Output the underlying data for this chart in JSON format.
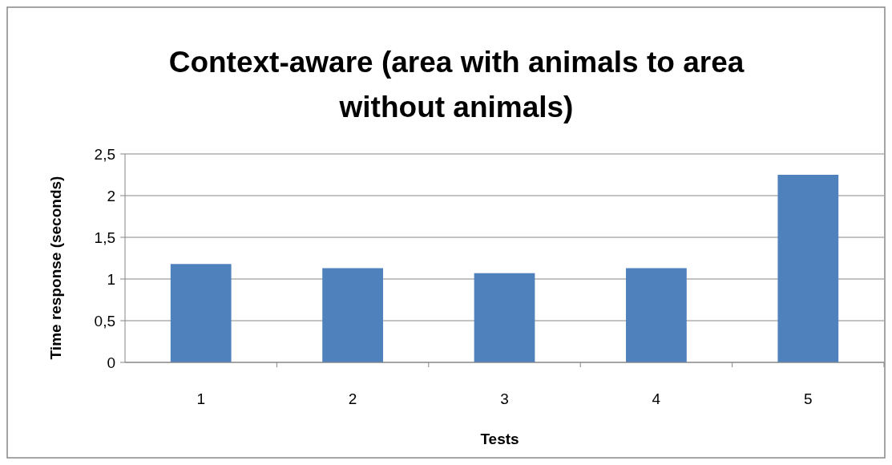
{
  "chart_data": {
    "type": "bar",
    "title": "Context-aware (area with animals to area without animals)",
    "xlabel": "Tests",
    "ylabel": "Time response (seconds)",
    "categories": [
      "1",
      "2",
      "3",
      "4",
      "5"
    ],
    "values": [
      1.18,
      1.13,
      1.07,
      1.13,
      2.25
    ],
    "color": "#4f81bd",
    "ylim": [
      0,
      2.5
    ],
    "yticks": [
      0,
      {
        "value": 0.5,
        "label": "0,5"
      },
      1,
      {
        "value": 1.5,
        "label": "1,5"
      },
      2,
      {
        "value": 2.5,
        "label": "2,5"
      }
    ],
    "grid": "y"
  }
}
